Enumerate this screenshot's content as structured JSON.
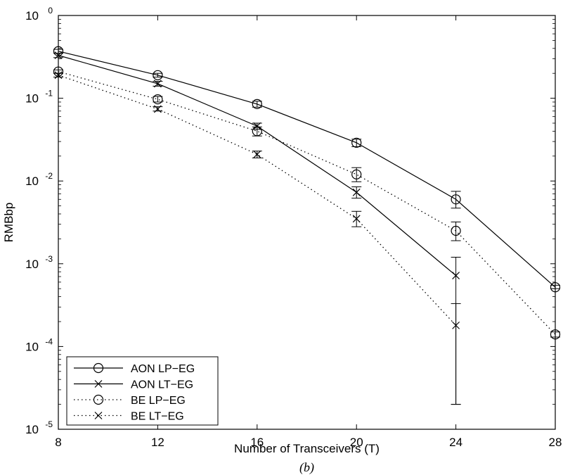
{
  "chart_data": {
    "type": "line",
    "xlabel": "Number of Transceivers (T)",
    "ylabel": "RMBbp",
    "caption": "(b)",
    "x_ticks": [
      "8",
      "12",
      "16",
      "20",
      "24",
      "28"
    ],
    "y_tick_exponents": [
      "0",
      "-1",
      "-2",
      "-3",
      "-4",
      "-5"
    ],
    "y_tick_base": "10",
    "xlim": [
      8,
      28
    ],
    "ylim": [
      1e-05,
      1
    ],
    "yscale": "log",
    "grid": false,
    "legend_position": "bottom-left",
    "series": [
      {
        "name": "AON LP−EG",
        "line_style": "solid",
        "marker": "circle",
        "x": [
          8,
          12,
          16,
          20,
          24,
          28
        ],
        "y": [
          0.37,
          0.19,
          0.085,
          0.029,
          0.006,
          0.00052
        ],
        "errors": [
          [
            0.35,
            0.39
          ],
          [
            0.18,
            0.2
          ],
          [
            0.078,
            0.092
          ],
          [
            0.026,
            0.032
          ],
          [
            0.0047,
            0.0075
          ],
          [
            0.0005,
            0.00055
          ]
        ]
      },
      {
        "name": "AON LT−EG",
        "line_style": "solid",
        "marker": "x",
        "x": [
          8,
          12,
          16,
          20,
          24
        ],
        "y": [
          0.33,
          0.15,
          0.046,
          0.0073,
          0.00072
        ],
        "errors": [
          [
            0.31,
            0.35
          ],
          [
            0.14,
            0.16
          ],
          [
            0.042,
            0.05
          ],
          [
            0.0062,
            0.0085
          ],
          [
            2e-05,
            0.0012
          ]
        ]
      },
      {
        "name": "BE LP−EG",
        "line_style": "dotted",
        "marker": "circle",
        "x": [
          8,
          12,
          16,
          20,
          24,
          28
        ],
        "y": [
          0.21,
          0.097,
          0.04,
          0.012,
          0.0025,
          0.00014
        ],
        "errors": [
          [
            0.2,
            0.22
          ],
          [
            0.09,
            0.105
          ],
          [
            0.035,
            0.045
          ],
          [
            0.0098,
            0.0145
          ],
          [
            0.0019,
            0.0032
          ],
          [
            0.00013,
            0.00015
          ]
        ]
      },
      {
        "name": "BE LT−EG",
        "line_style": "dotted",
        "marker": "x",
        "x": [
          8,
          12,
          16,
          20,
          24
        ],
        "y": [
          0.19,
          0.074,
          0.021,
          0.0035,
          0.00018
        ],
        "errors": [
          [
            0.18,
            0.2
          ],
          [
            0.07,
            0.079
          ],
          [
            0.019,
            0.023
          ],
          [
            0.0028,
            0.0043
          ],
          [
            2e-05,
            0.00033
          ]
        ]
      }
    ]
  }
}
